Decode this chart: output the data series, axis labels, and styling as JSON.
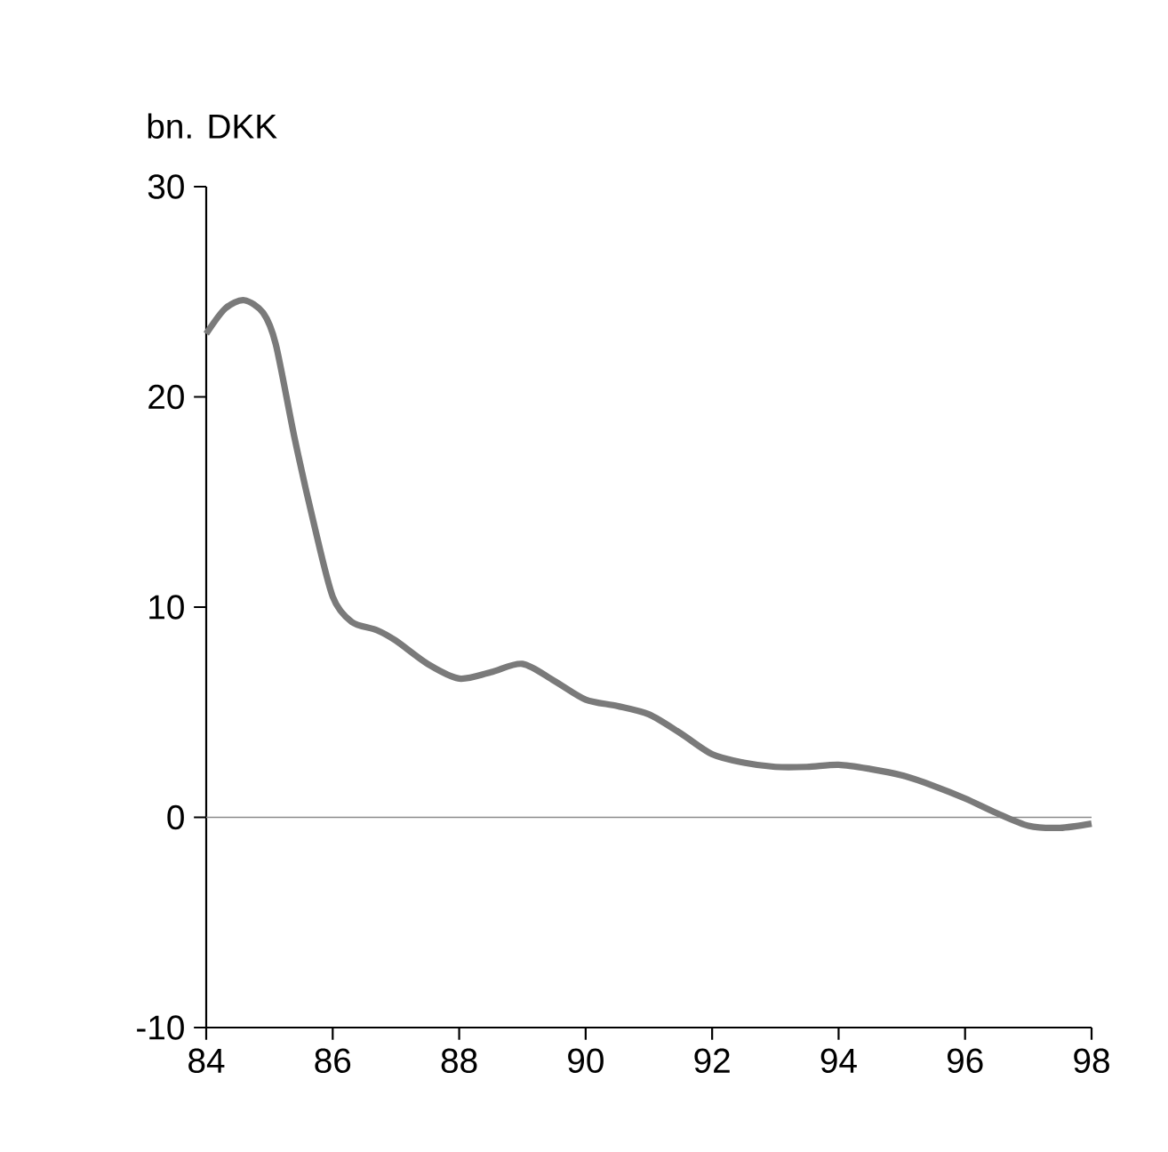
{
  "chart_data": {
    "type": "line",
    "ylabel": "bn. DKK",
    "x": [
      84.0,
      84.3,
      84.6,
      84.9,
      85.1,
      85.4,
      85.7,
      86.0,
      86.3,
      86.7,
      87.0,
      87.5,
      88.0,
      88.5,
      89.0,
      89.5,
      90.0,
      90.5,
      91.0,
      91.5,
      92.0,
      92.5,
      93.0,
      93.5,
      94.0,
      94.5,
      95.0,
      95.5,
      96.0,
      96.5,
      97.0,
      97.5,
      98.0
    ],
    "series": [
      {
        "color": "#7a7a7a",
        "values": [
          23,
          24.2,
          24.6,
          24.0,
          22.5,
          18,
          14,
          10.5,
          9.3,
          8.9,
          8.4,
          7.3,
          6.6,
          6.9,
          7.3,
          6.5,
          5.6,
          5.3,
          4.9,
          4.0,
          3.0,
          2.6,
          2.4,
          2.4,
          2.5,
          2.3,
          2.0,
          1.5,
          0.9,
          0.2,
          -0.4,
          -0.5,
          -0.3
        ]
      }
    ],
    "xlim": [
      84,
      98
    ],
    "xticks": [
      84,
      86,
      88,
      90,
      92,
      94,
      96,
      98
    ],
    "ylim": [
      -10,
      30
    ],
    "yticks": [
      -10,
      0,
      10,
      20,
      30
    ],
    "ref_lines": [
      {
        "axis": "y",
        "value": 0,
        "color": "#8a8a8a"
      }
    ],
    "grid": false,
    "marker": "none",
    "line_style": "solid"
  }
}
